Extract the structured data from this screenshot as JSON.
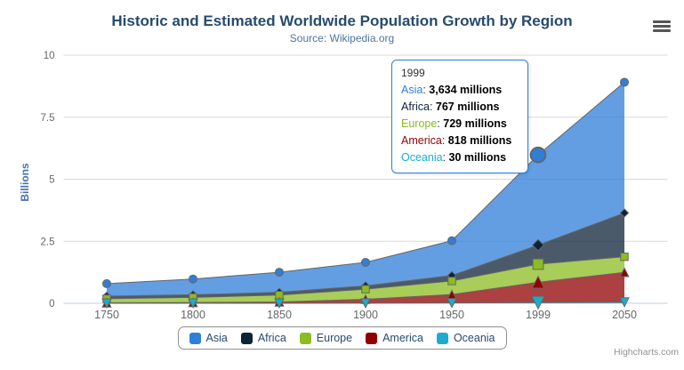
{
  "chart_data": {
    "type": "area",
    "stacking": "normal",
    "title": "Historic and Estimated Worldwide Population Growth by Region",
    "subtitle": "Source: Wikipedia.org",
    "categories": [
      "1750",
      "1800",
      "1850",
      "1900",
      "1950",
      "1999",
      "2050"
    ],
    "series": [
      {
        "name": "Asia",
        "color": "#2f7ed8",
        "marker": "circle",
        "values": [
          502,
          635,
          809,
          947,
          1402,
          3634,
          5268
        ]
      },
      {
        "name": "Africa",
        "color": "#0d233a",
        "marker": "diamond",
        "values": [
          106,
          107,
          111,
          133,
          221,
          767,
          1766
        ]
      },
      {
        "name": "Europe",
        "color": "#8bbc21",
        "marker": "square",
        "values": [
          163,
          203,
          276,
          408,
          547,
          729,
          628
        ]
      },
      {
        "name": "America",
        "color": "#910000",
        "marker": "triangle",
        "values": [
          18,
          31,
          54,
          156,
          339,
          818,
          1201
        ]
      },
      {
        "name": "Oceania",
        "color": "#1aadce",
        "marker": "triangle-down",
        "values": [
          2,
          2,
          2,
          6,
          13,
          30,
          46
        ]
      }
    ],
    "values_unit": "millions",
    "xlabel": "",
    "ylabel": "Billions",
    "yticks": [
      0,
      2.5,
      5,
      7.5,
      10
    ],
    "ylim": [
      0,
      10
    ],
    "grid": true,
    "legend_position": "bottom",
    "hover_index": 5,
    "hover_category": "1999"
  },
  "tooltip": {
    "header": "1999",
    "separator": ": ",
    "rows": [
      {
        "label": "Asia",
        "value": "3,634 millions"
      },
      {
        "label": "Africa",
        "value": "767 millions"
      },
      {
        "label": "Europe",
        "value": "729 millions"
      },
      {
        "label": "America",
        "value": "818 millions"
      },
      {
        "label": "Oceania",
        "value": "30 millions"
      }
    ]
  },
  "credits": "Highcharts.com",
  "styles": {
    "title_color": "#274b6d",
    "subtitle_color": "#4d759e",
    "axis_label_color": "#666666",
    "y_title_color": "#4572a7",
    "grid_color": "#d8d8d8",
    "axis_line_color": "#c0d0e0",
    "area_line_color": "#666666",
    "fill_opacity": 0.75,
    "legend_text_color": "#274b6d",
    "legend_border_color": "#909090",
    "tooltip_border_color": "#2f7ed8",
    "credits_color": "#909090"
  }
}
